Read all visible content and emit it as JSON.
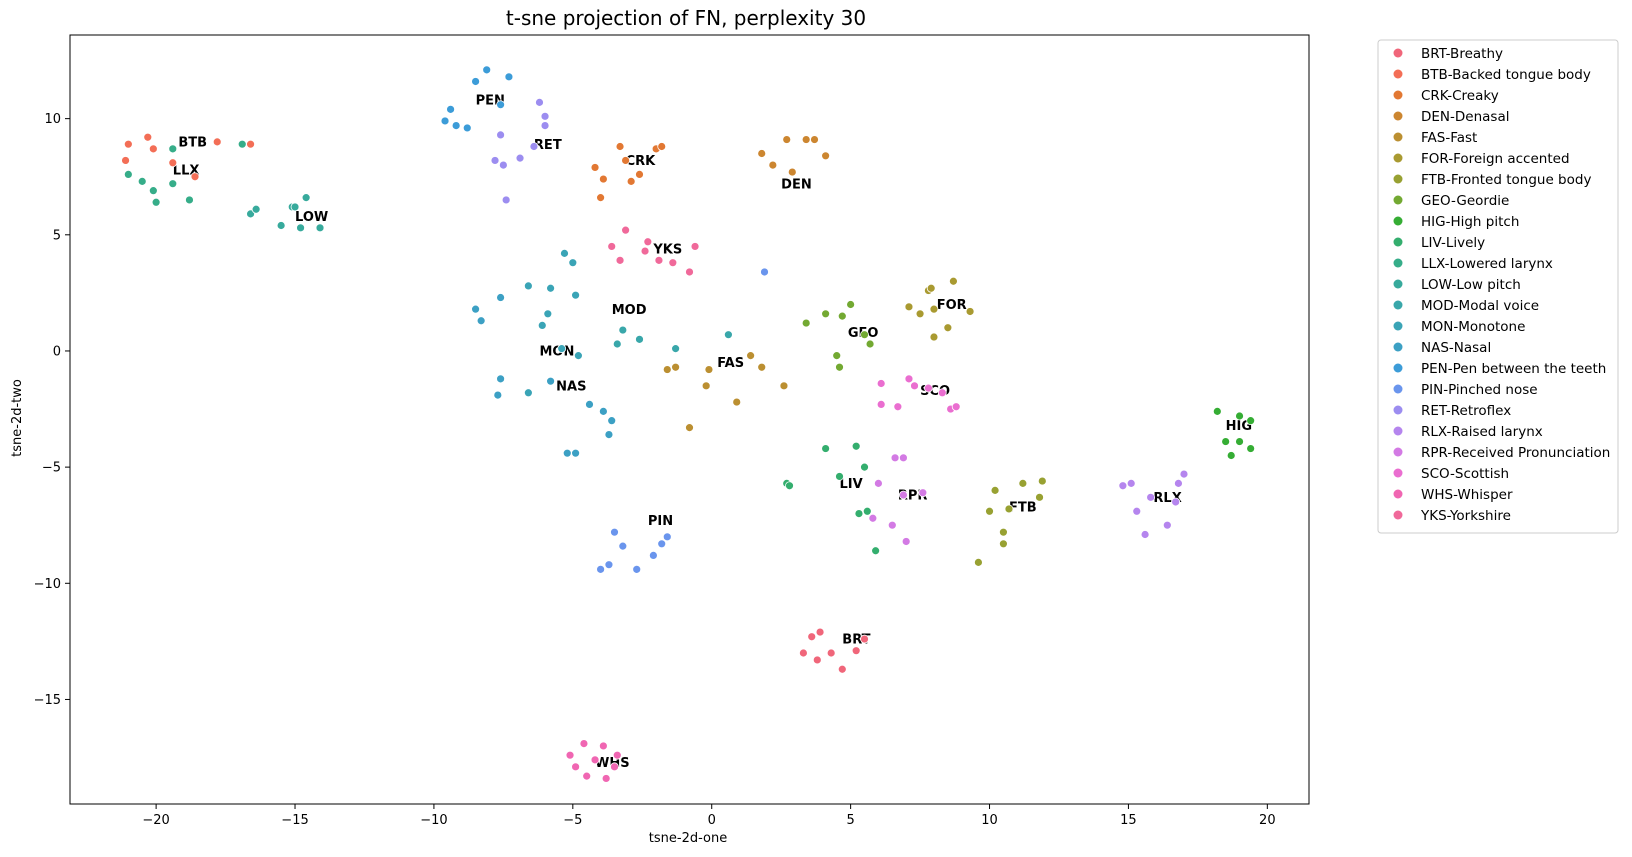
{
  "chart_data": {
    "type": "scatter",
    "title": "t-sne projection of FN, perplexity 30",
    "xlabel": "tsne-2d-one",
    "ylabel": "tsne-2d-two",
    "xlim": [
      -23.1,
      21.5
    ],
    "ylim": [
      -19.5,
      13.6
    ],
    "xticks": [
      -20,
      -15,
      -10,
      -5,
      0,
      5,
      10,
      15,
      20
    ],
    "xtick_labels": [
      "−20",
      "−15",
      "−10",
      "−5",
      "0",
      "5",
      "10",
      "15",
      "20"
    ],
    "yticks": [
      -15,
      -10,
      -5,
      0,
      5,
      10
    ],
    "ytick_labels": [
      "−15",
      "−10",
      "−5",
      "0",
      "5",
      "10"
    ],
    "grid": false,
    "legend": "outside-right-top",
    "series": [
      {
        "name": "BRT-Breathy",
        "label": "BRT",
        "color": "#f0667a",
        "label_pos": [
          4.7,
          -12.6
        ],
        "points": [
          [
            3.3,
            -13.0
          ],
          [
            3.6,
            -12.3
          ],
          [
            3.9,
            -12.1
          ],
          [
            4.3,
            -13.0
          ],
          [
            4.7,
            -13.7
          ],
          [
            5.2,
            -12.9
          ],
          [
            5.5,
            -12.4
          ],
          [
            3.8,
            -13.3
          ]
        ]
      },
      {
        "name": "BTB-Backed tongue body",
        "label": "BTB",
        "color": "#f36e56",
        "label_pos": [
          -19.2,
          8.8
        ],
        "points": [
          [
            -21.1,
            8.2
          ],
          [
            -21.0,
            8.9
          ],
          [
            -20.3,
            9.2
          ],
          [
            -20.1,
            8.7
          ],
          [
            -19.4,
            8.1
          ],
          [
            -18.6,
            7.5
          ],
          [
            -17.8,
            9.0
          ],
          [
            -16.6,
            8.9
          ]
        ]
      },
      {
        "name": "CRK-Creaky",
        "label": "CRK",
        "color": "#e27833",
        "label_pos": [
          -3.1,
          8.0
        ],
        "points": [
          [
            -4.2,
            7.9
          ],
          [
            -3.9,
            7.4
          ],
          [
            -3.3,
            8.8
          ],
          [
            -3.1,
            8.2
          ],
          [
            -2.9,
            7.3
          ],
          [
            -2.6,
            7.6
          ],
          [
            -2.0,
            8.7
          ],
          [
            -1.8,
            8.8
          ],
          [
            -4.0,
            6.6
          ]
        ]
      },
      {
        "name": "DEN-Denasal",
        "label": "DEN",
        "color": "#cc8630",
        "label_pos": [
          2.5,
          7.0
        ],
        "points": [
          [
            1.8,
            8.5
          ],
          [
            2.2,
            8.0
          ],
          [
            2.7,
            9.1
          ],
          [
            2.9,
            7.7
          ],
          [
            3.4,
            9.1
          ],
          [
            3.7,
            9.1
          ],
          [
            4.1,
            8.4
          ]
        ]
      },
      {
        "name": "FAS-Fast",
        "label": "FAS",
        "color": "#bb8f31",
        "label_pos": [
          0.2,
          -0.7
        ],
        "points": [
          [
            -1.6,
            -0.8
          ],
          [
            -1.3,
            -0.7
          ],
          [
            -0.1,
            -0.8
          ],
          [
            -0.2,
            -1.5
          ],
          [
            0.9,
            -2.2
          ],
          [
            1.4,
            -0.2
          ],
          [
            1.8,
            -0.7
          ],
          [
            2.6,
            -1.5
          ],
          [
            -0.8,
            -3.3
          ]
        ]
      },
      {
        "name": "FOR-Foreign accented",
        "label": "FOR",
        "color": "#a99a31",
        "label_pos": [
          8.1,
          1.8
        ],
        "points": [
          [
            7.1,
            1.9
          ],
          [
            7.5,
            1.6
          ],
          [
            7.8,
            2.6
          ],
          [
            7.9,
            2.7
          ],
          [
            8.0,
            1.8
          ],
          [
            8.0,
            0.6
          ],
          [
            8.5,
            1.0
          ],
          [
            8.7,
            3.0
          ],
          [
            9.3,
            1.7
          ]
        ]
      },
      {
        "name": "FTB-Fronted tongue body",
        "label": "FTB",
        "color": "#98a132",
        "label_pos": [
          10.7,
          -6.9
        ],
        "points": [
          [
            9.6,
            -9.1
          ],
          [
            10.0,
            -6.9
          ],
          [
            10.2,
            -6.0
          ],
          [
            10.5,
            -7.8
          ],
          [
            10.5,
            -8.3
          ],
          [
            10.7,
            -6.8
          ],
          [
            11.2,
            -5.7
          ],
          [
            11.8,
            -6.3
          ],
          [
            11.9,
            -5.6
          ]
        ]
      },
      {
        "name": "GEO-Geordie",
        "label": "GEO",
        "color": "#73a932",
        "label_pos": [
          4.9,
          0.6
        ],
        "points": [
          [
            3.4,
            1.2
          ],
          [
            4.1,
            1.6
          ],
          [
            4.5,
            -0.2
          ],
          [
            4.6,
            -0.7
          ],
          [
            4.7,
            1.5
          ],
          [
            5.0,
            2.0
          ],
          [
            5.5,
            0.7
          ],
          [
            5.7,
            0.3
          ]
        ]
      },
      {
        "name": "HIG-High pitch",
        "label": "HIG",
        "color": "#35ad34",
        "label_pos": [
          18.5,
          -3.4
        ],
        "points": [
          [
            18.2,
            -2.6
          ],
          [
            18.5,
            -3.9
          ],
          [
            18.7,
            -4.5
          ],
          [
            19.0,
            -2.8
          ],
          [
            19.0,
            -3.9
          ],
          [
            19.4,
            -3.0
          ],
          [
            19.4,
            -4.2
          ]
        ]
      },
      {
        "name": "LIV-Lively",
        "label": "LIV",
        "color": "#34ae6e",
        "label_pos": [
          4.6,
          -5.9
        ],
        "points": [
          [
            2.7,
            -5.7
          ],
          [
            2.8,
            -5.8
          ],
          [
            4.1,
            -4.2
          ],
          [
            4.6,
            -5.4
          ],
          [
            5.2,
            -4.1
          ],
          [
            5.3,
            -7.0
          ],
          [
            5.5,
            -5.0
          ],
          [
            5.9,
            -8.6
          ],
          [
            5.6,
            -6.9
          ]
        ]
      },
      {
        "name": "LLX-Lowered larynx",
        "label": "LLX",
        "color": "#36ad89",
        "label_pos": [
          -19.4,
          7.6
        ],
        "points": [
          [
            -21.0,
            7.6
          ],
          [
            -20.5,
            7.3
          ],
          [
            -20.1,
            6.9
          ],
          [
            -20.0,
            6.4
          ],
          [
            -19.4,
            8.7
          ],
          [
            -19.4,
            7.2
          ],
          [
            -18.8,
            6.5
          ],
          [
            -16.9,
            8.9
          ]
        ]
      },
      {
        "name": "LOW-Low pitch",
        "label": "LOW",
        "color": "#37aa9c",
        "label_pos": [
          -15.0,
          5.6
        ],
        "points": [
          [
            -16.6,
            5.9
          ],
          [
            -16.4,
            6.1
          ],
          [
            -15.5,
            5.4
          ],
          [
            -15.1,
            6.2
          ],
          [
            -14.8,
            5.3
          ],
          [
            -14.6,
            6.6
          ],
          [
            -14.1,
            5.3
          ],
          [
            -15.0,
            6.2
          ]
        ]
      },
      {
        "name": "MOD-Modal voice",
        "label": "MOD",
        "color": "#39a7aa",
        "label_pos": [
          -3.6,
          1.6
        ],
        "points": [
          [
            -3.4,
            0.3
          ],
          [
            -3.2,
            0.9
          ],
          [
            -2.6,
            0.5
          ],
          [
            -1.3,
            0.1
          ],
          [
            0.6,
            0.7
          ]
        ]
      },
      {
        "name": "MON-Monotone",
        "label": "MON",
        "color": "#3aa4b6",
        "label_pos": [
          -6.2,
          -0.2
        ],
        "points": [
          [
            -6.6,
            2.8
          ],
          [
            -6.1,
            1.1
          ],
          [
            -5.9,
            1.6
          ],
          [
            -5.8,
            2.7
          ],
          [
            -5.4,
            0.1
          ],
          [
            -5.3,
            4.2
          ],
          [
            -5.0,
            3.8
          ],
          [
            -4.9,
            2.4
          ],
          [
            -4.8,
            -0.2
          ],
          [
            -6.6,
            -1.8
          ]
        ]
      },
      {
        "name": "NAS-Nasal",
        "label": "NAS",
        "color": "#3ca0c4",
        "label_pos": [
          -5.6,
          -1.7
        ],
        "points": [
          [
            -8.5,
            1.8
          ],
          [
            -8.3,
            1.3
          ],
          [
            -7.6,
            2.3
          ],
          [
            -7.6,
            -1.2
          ],
          [
            -7.7,
            -1.9
          ],
          [
            -5.8,
            -1.3
          ],
          [
            -5.2,
            -4.4
          ],
          [
            -4.9,
            -4.4
          ],
          [
            -4.4,
            -2.3
          ],
          [
            -3.9,
            -2.6
          ],
          [
            -3.7,
            -3.6
          ],
          [
            -3.6,
            -3.0
          ]
        ]
      },
      {
        "name": "PEN-Pen between the teeth",
        "label": "PEN",
        "color": "#3c9cd8",
        "label_pos": [
          -8.5,
          10.6
        ],
        "points": [
          [
            -9.6,
            9.9
          ],
          [
            -9.4,
            10.4
          ],
          [
            -9.2,
            9.7
          ],
          [
            -8.8,
            9.6
          ],
          [
            -8.5,
            11.6
          ],
          [
            -8.1,
            12.1
          ],
          [
            -7.6,
            10.6
          ],
          [
            -7.3,
            11.8
          ]
        ]
      },
      {
        "name": "PIN-Pinched nose",
        "label": "PIN",
        "color": "#6a95ed",
        "label_pos": [
          -2.3,
          -7.5
        ],
        "points": [
          [
            -4.0,
            -9.4
          ],
          [
            -3.7,
            -9.2
          ],
          [
            -3.5,
            -7.8
          ],
          [
            -3.2,
            -8.4
          ],
          [
            -2.7,
            -9.4
          ],
          [
            -2.1,
            -8.8
          ],
          [
            -1.8,
            -8.3
          ],
          [
            -1.6,
            -8.0
          ],
          [
            1.9,
            3.4
          ]
        ]
      },
      {
        "name": "RET-Retroflex",
        "label": "RET",
        "color": "#9c8df0",
        "label_pos": [
          -6.4,
          8.7
        ],
        "points": [
          [
            -7.6,
            9.3
          ],
          [
            -7.8,
            8.2
          ],
          [
            -7.5,
            8.0
          ],
          [
            -7.4,
            6.5
          ],
          [
            -6.9,
            8.3
          ],
          [
            -6.4,
            8.8
          ],
          [
            -6.2,
            10.7
          ],
          [
            -6.0,
            10.1
          ],
          [
            -6.0,
            9.7
          ]
        ]
      },
      {
        "name": "RLX-Raised larynx",
        "label": "RLX",
        "color": "#b585ee",
        "label_pos": [
          15.9,
          -6.5
        ],
        "points": [
          [
            14.8,
            -5.8
          ],
          [
            15.1,
            -5.7
          ],
          [
            15.3,
            -6.9
          ],
          [
            15.6,
            -7.9
          ],
          [
            15.8,
            -6.3
          ],
          [
            16.4,
            -7.5
          ],
          [
            16.7,
            -6.5
          ],
          [
            16.8,
            -5.7
          ],
          [
            17.0,
            -5.3
          ]
        ]
      },
      {
        "name": "RPR-Received Pronunciation",
        "label": "RPR",
        "color": "#d37ae4",
        "label_pos": [
          6.7,
          -6.4
        ],
        "points": [
          [
            5.8,
            -7.2
          ],
          [
            6.0,
            -5.7
          ],
          [
            6.5,
            -7.5
          ],
          [
            6.6,
            -4.6
          ],
          [
            6.9,
            -4.6
          ],
          [
            6.9,
            -6.2
          ],
          [
            7.0,
            -8.2
          ],
          [
            7.6,
            -6.1
          ]
        ]
      },
      {
        "name": "SCO-Scottish",
        "label": "SCO",
        "color": "#ea6ed0",
        "label_pos": [
          7.5,
          -1.9
        ],
        "points": [
          [
            6.1,
            -1.4
          ],
          [
            6.1,
            -2.3
          ],
          [
            6.7,
            -2.4
          ],
          [
            7.1,
            -1.2
          ],
          [
            7.3,
            -1.5
          ],
          [
            7.8,
            -1.6
          ],
          [
            8.3,
            -1.8
          ],
          [
            8.6,
            -2.5
          ],
          [
            8.8,
            -2.4
          ]
        ]
      },
      {
        "name": "WHS-Whisper",
        "label": "WHS",
        "color": "#f066b2",
        "label_pos": [
          -4.2,
          -17.9
        ],
        "points": [
          [
            -5.1,
            -17.4
          ],
          [
            -4.9,
            -17.9
          ],
          [
            -4.6,
            -16.9
          ],
          [
            -4.5,
            -18.3
          ],
          [
            -4.2,
            -17.6
          ],
          [
            -3.9,
            -17.0
          ],
          [
            -3.8,
            -18.4
          ],
          [
            -3.5,
            -17.9
          ],
          [
            -3.4,
            -17.4
          ]
        ]
      },
      {
        "name": "YKS-Yorkshire",
        "label": "YKS",
        "color": "#f0699a",
        "label_pos": [
          -2.1,
          4.2
        ],
        "points": [
          [
            -3.6,
            4.5
          ],
          [
            -3.3,
            3.9
          ],
          [
            -3.1,
            5.2
          ],
          [
            -2.4,
            4.3
          ],
          [
            -2.3,
            4.7
          ],
          [
            -1.9,
            3.9
          ],
          [
            -1.4,
            3.8
          ],
          [
            -0.8,
            3.4
          ],
          [
            -0.6,
            4.5
          ]
        ]
      }
    ]
  }
}
